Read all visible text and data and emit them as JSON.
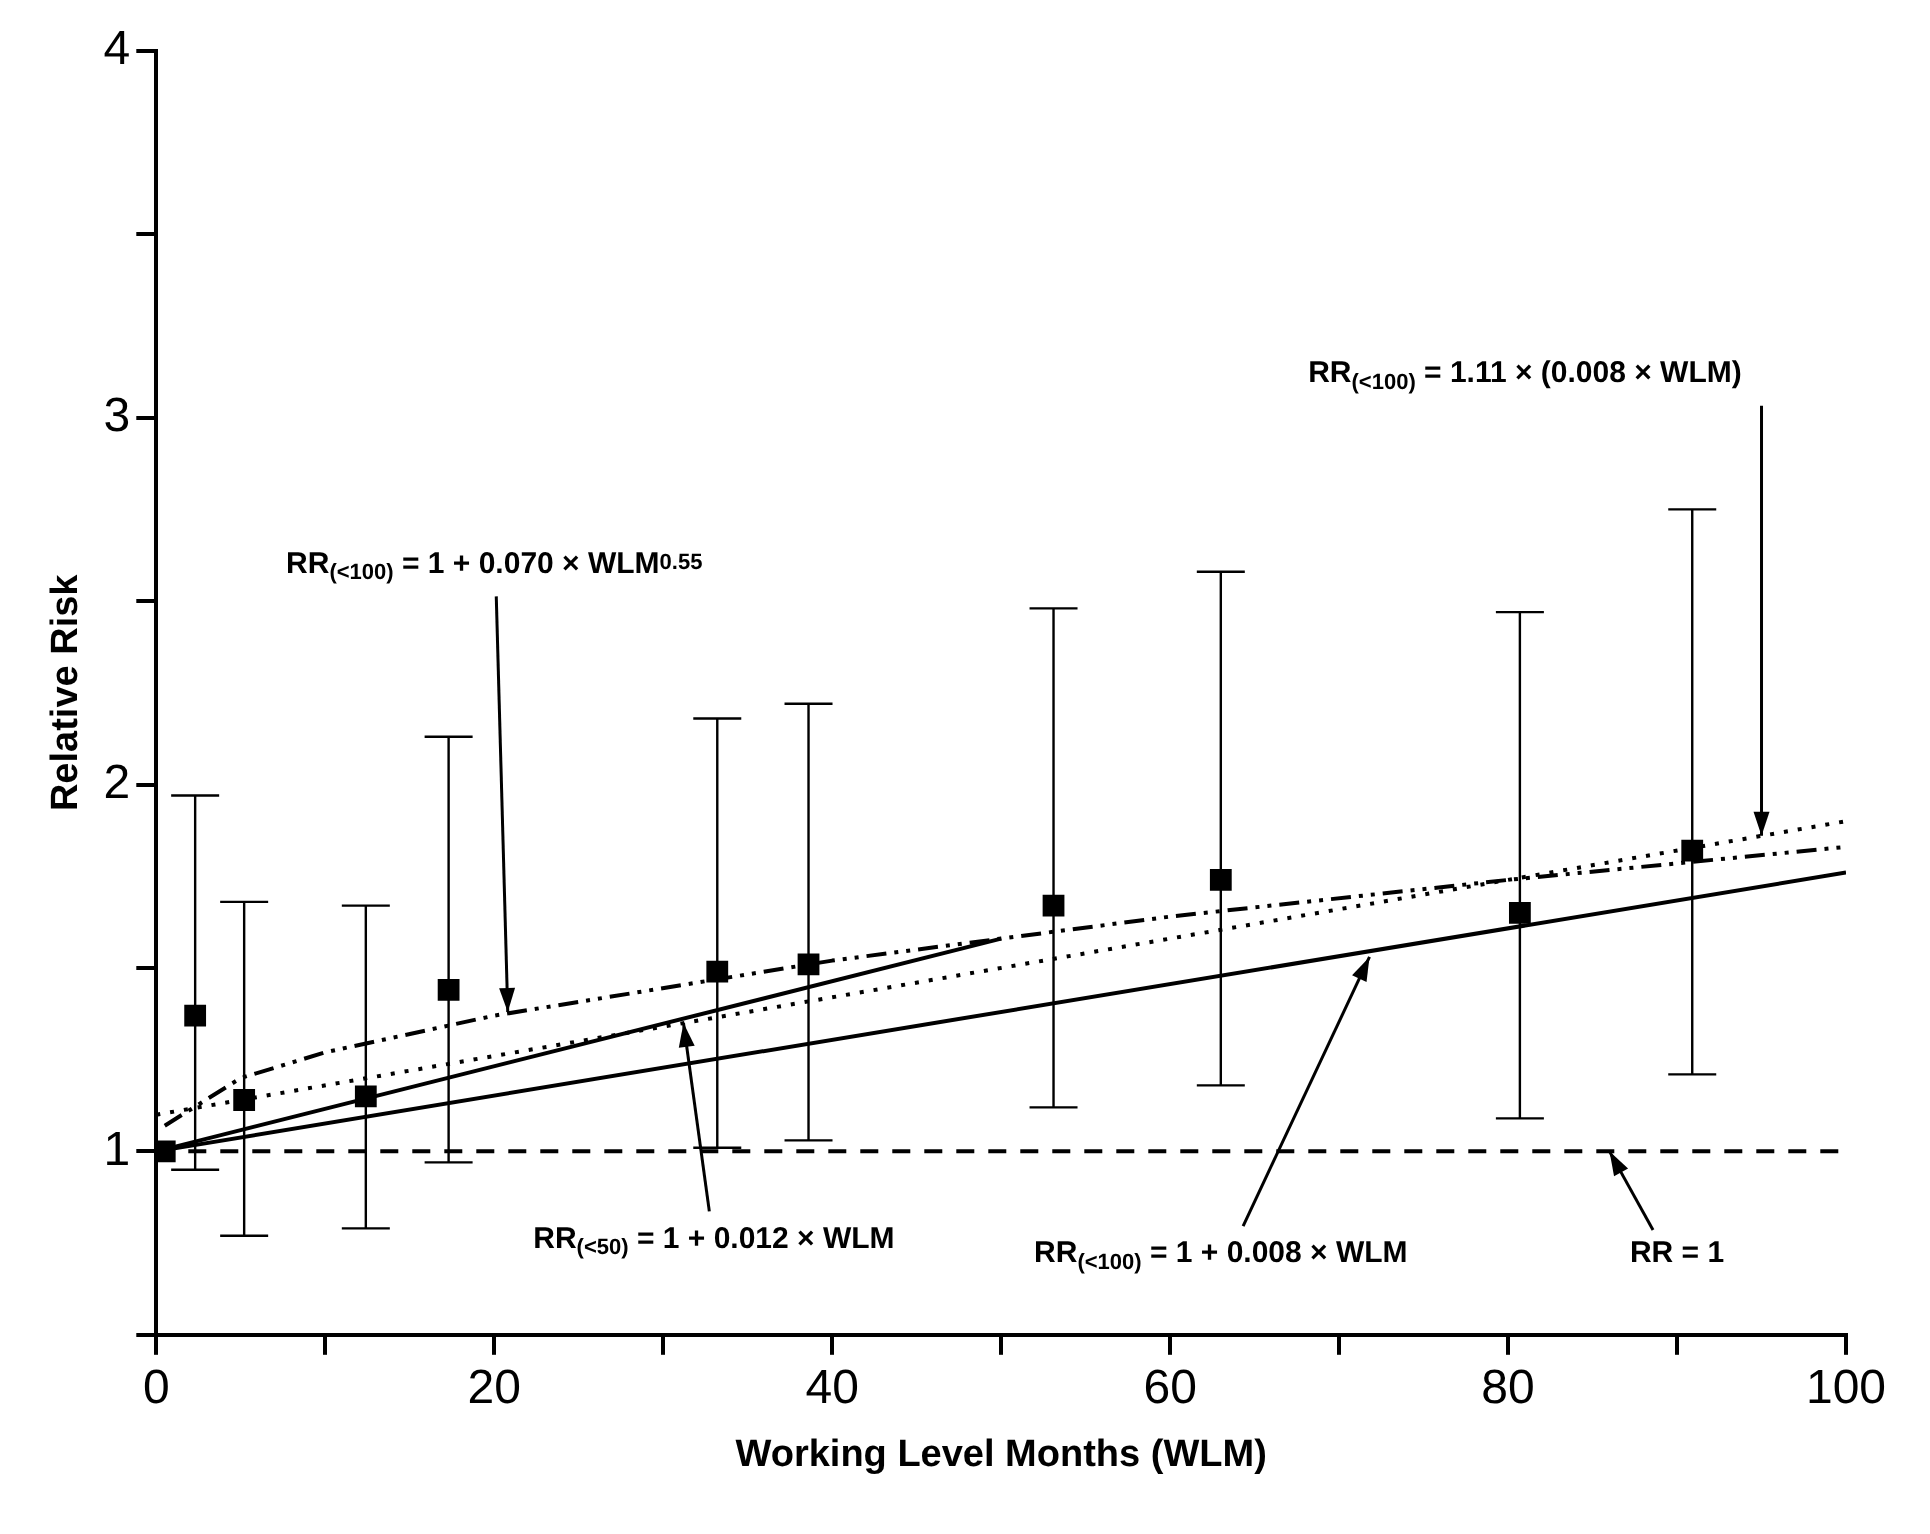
{
  "chart_data": {
    "type": "scatter",
    "xlabel": "Working Level Months (WLM)",
    "ylabel": "Relative Risk",
    "xlim": [
      0,
      100
    ],
    "xticks": [
      0,
      {
        "value": 10,
        "label": null
      },
      20,
      {
        "value": 30,
        "label": null
      },
      40,
      {
        "value": 50,
        "label": null
      },
      60,
      {
        "value": 70,
        "label": null
      },
      80,
      {
        "value": 90,
        "label": null
      },
      100
    ],
    "ylim": [
      0.5,
      4
    ],
    "yticks": [
      {
        "value": 0.5,
        "label": null
      },
      1,
      {
        "value": 1.5,
        "label": null
      },
      2,
      {
        "value": 2.5,
        "label": null
      },
      3,
      {
        "value": 3.5,
        "label": null
      },
      4
    ],
    "grid": false,
    "legend": false,
    "series": [
      {
        "marker": "square",
        "color": "#000000",
        "x": [
          0.5,
          2.3,
          5.2,
          12.4,
          17.3,
          33.2,
          38.6,
          53.1,
          63.0,
          80.7,
          90.9
        ],
        "values": [
          1.0,
          1.37,
          1.14,
          1.15,
          1.44,
          1.49,
          1.51,
          1.67,
          1.74,
          1.65,
          1.82
        ],
        "errors": [
          null,
          [
            0.95,
            1.97
          ],
          [
            0.77,
            1.68
          ],
          [
            0.79,
            1.67
          ],
          [
            0.97,
            2.13
          ],
          [
            1.01,
            2.18
          ],
          [
            1.03,
            2.22
          ],
          [
            1.12,
            2.48
          ],
          [
            1.18,
            2.58
          ],
          [
            1.09,
            2.47
          ],
          [
            1.21,
            2.75
          ]
        ]
      },
      {
        "type": "line",
        "line_style": "solid",
        "color": "#000000",
        "x": [
          0,
          100
        ],
        "values": [
          1.0,
          1.76
        ]
      },
      {
        "type": "line",
        "line_style": "solid",
        "color": "#000000",
        "x": [
          0,
          50
        ],
        "values": [
          1.0,
          1.58
        ]
      },
      {
        "type": "line",
        "line_style": "dotted",
        "color": "#000000",
        "x": [
          0,
          100
        ],
        "values": [
          1.1,
          1.9
        ]
      },
      {
        "type": "line",
        "line_style": "dashed",
        "color": "#000000",
        "x": [
          0.5,
          5,
          10,
          20,
          40,
          60,
          80,
          100
        ],
        "values": [
          1.07,
          1.2,
          1.27,
          1.37,
          1.52,
          1.64,
          1.74,
          1.83
        ]
      }
    ],
    "ref_lines": [
      {
        "axis": "y",
        "value": 1,
        "label": "RR = 1",
        "line_style": "dashed",
        "color": "#000000"
      }
    ],
    "annotations": [
      {
        "text": "RR$_{(<100)}$ = 1.11 × (0.008 × WLM)",
        "x": 95,
        "y": 1.86
      },
      {
        "text": "RR$_{(<100)}$ = 1 + 0.070 × WLM$^{0.55}$",
        "x": 20.8,
        "y": 1.38
      },
      {
        "text": "RR$_{(<50)}$ = 1 + 0.012 × WLM",
        "x": 31.2,
        "y": 1.35
      },
      {
        "text": "RR$_{(<100)}$ = 1 + 0.008 × WLM",
        "x": 71.8,
        "y": 1.53
      }
    ]
  }
}
